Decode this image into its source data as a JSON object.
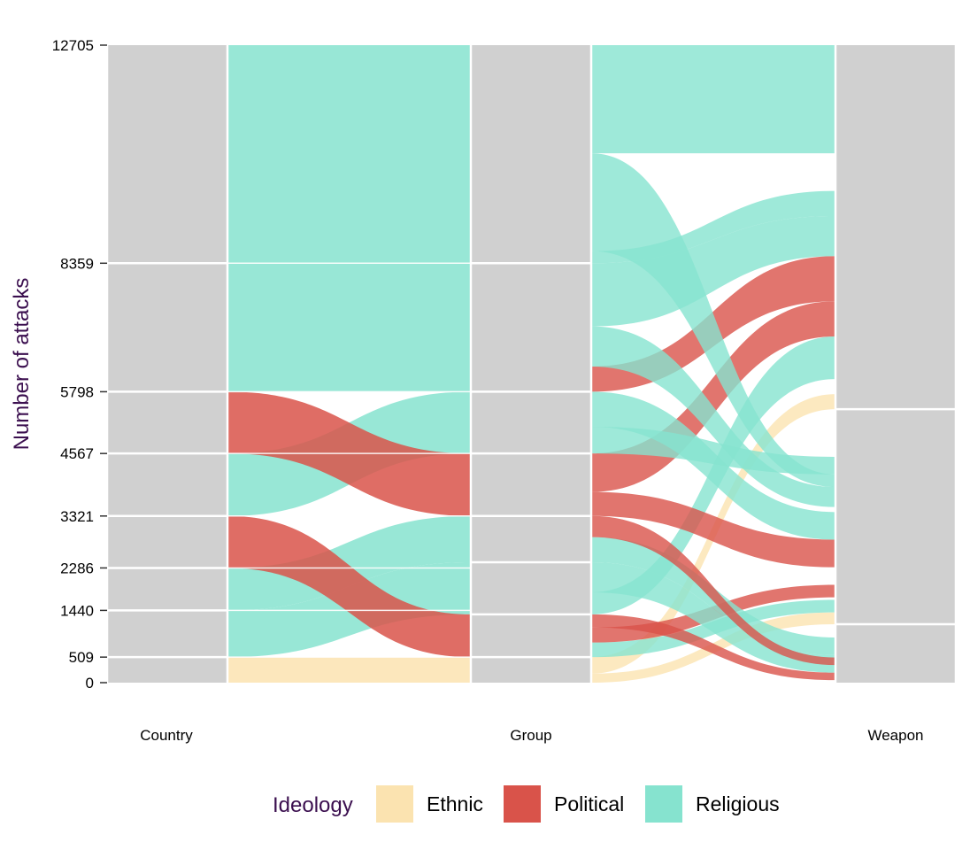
{
  "chart_data": {
    "type": "alluvial",
    "ylabel": "Number of attacks",
    "axes": [
      "Country",
      "Group",
      "Weapon"
    ],
    "y_ticks": [
      0,
      509,
      1440,
      2286,
      3321,
      4567,
      5798,
      8359,
      12705
    ],
    "ylim": [
      0,
      12705
    ],
    "legend": {
      "title": "Ideology",
      "placement": "bottom",
      "entries": [
        {
          "name": "Ethnic",
          "color": "#fbe3b0"
        },
        {
          "name": "Political",
          "color": "#d9534a"
        },
        {
          "name": "Religious",
          "color": "#86e3cf"
        }
      ]
    },
    "stratum_color": "#d0d0d0",
    "country_strata": [
      {
        "from": 0,
        "to": 509
      },
      {
        "from": 509,
        "to": 1440
      },
      {
        "from": 1440,
        "to": 2286
      },
      {
        "from": 2286,
        "to": 3321
      },
      {
        "from": 3321,
        "to": 4567
      },
      {
        "from": 4567,
        "to": 5798
      },
      {
        "from": 5798,
        "to": 8359
      },
      {
        "from": 8359,
        "to": 12705
      }
    ],
    "group_strata": [
      {
        "from": 0,
        "to": 509
      },
      {
        "from": 509,
        "to": 1360
      },
      {
        "from": 1360,
        "to": 2400
      },
      {
        "from": 2400,
        "to": 3321
      },
      {
        "from": 3321,
        "to": 4567
      },
      {
        "from": 4567,
        "to": 5798
      },
      {
        "from": 5798,
        "to": 8359
      },
      {
        "from": 8359,
        "to": 12705
      }
    ],
    "weapon_strata": [
      {
        "from": 0,
        "to": 1165
      },
      {
        "from": 1165,
        "to": 5450
      },
      {
        "from": 5450,
        "to": 12705
      }
    ],
    "flows_country_group": [
      {
        "ideology": "Ethnic",
        "c": [
          0,
          509
        ],
        "g": [
          0,
          509
        ]
      },
      {
        "ideology": "Religious",
        "c": [
          509,
          1440
        ],
        "g": [
          1360,
          2400
        ]
      },
      {
        "ideology": "Religious",
        "c": [
          1440,
          2286
        ],
        "g": [
          2400,
          3321
        ]
      },
      {
        "ideology": "Political",
        "c": [
          2286,
          3321
        ],
        "g": [
          509,
          1360
        ]
      },
      {
        "ideology": "Religious",
        "c": [
          3321,
          4567
        ],
        "g": [
          4567,
          5798
        ]
      },
      {
        "ideology": "Political",
        "c": [
          4567,
          5798
        ],
        "g": [
          3321,
          4567
        ]
      },
      {
        "ideology": "Religious",
        "c": [
          5798,
          8359
        ],
        "g": [
          5798,
          8359
        ]
      },
      {
        "ideology": "Religious",
        "c": [
          8359,
          12705
        ],
        "g": [
          8359,
          12705
        ]
      }
    ],
    "flows_group_weapon": [
      {
        "ideology": "Ethnic",
        "g": [
          0,
          180
        ],
        "w": [
          1165,
          1400
        ]
      },
      {
        "ideology": "Ethnic",
        "g": [
          180,
          509
        ],
        "w": [
          5450,
          5750
        ]
      },
      {
        "ideology": "Religious",
        "g": [
          509,
          800
        ],
        "w": [
          1400,
          1650
        ]
      },
      {
        "ideology": "Political",
        "g": [
          800,
          1100
        ],
        "w": [
          1700,
          1950
        ]
      },
      {
        "ideology": "Political",
        "g": [
          1100,
          1360
        ],
        "w": [
          50,
          200
        ]
      },
      {
        "ideology": "Religious",
        "g": [
          1360,
          1800
        ],
        "w": [
          6050,
          6900
        ]
      },
      {
        "ideology": "Religious",
        "g": [
          1800,
          2400
        ],
        "w": [
          200,
          550
        ]
      },
      {
        "ideology": "Religious",
        "g": [
          2400,
          2900
        ],
        "w": [
          550,
          900
        ]
      },
      {
        "ideology": "Political",
        "g": [
          2900,
          3321
        ],
        "w": [
          350,
          500
        ]
      },
      {
        "ideology": "Political",
        "g": [
          3321,
          3800
        ],
        "w": [
          2300,
          2850
        ]
      },
      {
        "ideology": "Political",
        "g": [
          3800,
          4567
        ],
        "w": [
          6900,
          7600
        ]
      },
      {
        "ideology": "Religious",
        "g": [
          4567,
          5100
        ],
        "w": [
          4150,
          4500
        ]
      },
      {
        "ideology": "Religious",
        "g": [
          5100,
          5798
        ],
        "w": [
          2850,
          3400
        ]
      },
      {
        "ideology": "Political",
        "g": [
          5798,
          6300
        ],
        "w": [
          7600,
          8500
        ]
      },
      {
        "ideology": "Religious",
        "g": [
          6300,
          7100
        ],
        "w": [
          3500,
          3900
        ]
      },
      {
        "ideology": "Religious",
        "g": [
          7100,
          8359
        ],
        "w": [
          8500,
          9300
        ]
      },
      {
        "ideology": "Religious",
        "g": [
          8359,
          8600
        ],
        "w": [
          9300,
          9800
        ]
      },
      {
        "ideology": "Religious",
        "g": [
          8600,
          10550
        ],
        "w": [
          3900,
          4150
        ]
      },
      {
        "ideology": "Religious",
        "g": [
          10550,
          12705
        ],
        "w": [
          10550,
          12705
        ]
      }
    ]
  }
}
